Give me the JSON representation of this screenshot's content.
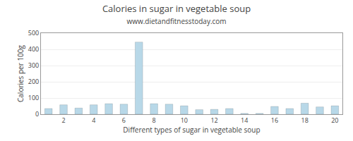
{
  "chart_data": {
    "type": "bar",
    "title": "Calories in sugar in vegetable soup",
    "subtitle": "www.dietandfitnesstoday.com",
    "xlabel": "Different types of sugar in vegetable soup",
    "ylabel": "Calories per 100g",
    "x": [
      1,
      2,
      3,
      4,
      5,
      6,
      7,
      8,
      9,
      10,
      11,
      12,
      13,
      14,
      15,
      16,
      17,
      18,
      19,
      20
    ],
    "values": [
      35,
      58,
      38,
      58,
      65,
      62,
      445,
      65,
      62,
      52,
      28,
      30,
      35,
      5,
      5,
      48,
      35,
      68,
      45,
      52
    ],
    "color": "#b8d8e8",
    "xlim": [
      0.5,
      20.5
    ],
    "xticks": [
      2,
      4,
      6,
      8,
      10,
      12,
      14,
      16,
      18,
      20
    ],
    "ylim": [
      0,
      500
    ],
    "yticks": [
      0,
      100,
      200,
      300,
      400,
      500
    ],
    "grid": "y"
  }
}
